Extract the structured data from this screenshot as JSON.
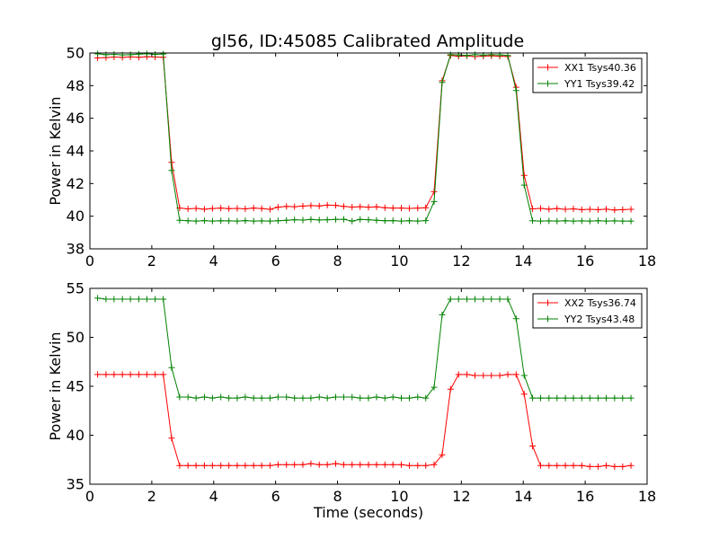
{
  "chart_data": [
    {
      "type": "line",
      "title": "gl56, ID:45085 Calibrated Amplitude",
      "xlabel": "",
      "ylabel": "Power in Kelvin",
      "xlim": [
        0,
        18
      ],
      "ylim": [
        38,
        50
      ],
      "xticks": [
        "0",
        "2",
        "4",
        "6",
        "8",
        "10",
        "12",
        "14",
        "16",
        "18"
      ],
      "yticks": [
        "38",
        "40",
        "42",
        "44",
        "46",
        "48",
        "50"
      ],
      "legend_position": "top-right",
      "grid": false,
      "x": [
        0.25,
        0.52,
        0.78,
        1.05,
        1.31,
        1.58,
        1.84,
        2.11,
        2.37,
        2.64,
        2.9,
        3.17,
        3.43,
        3.7,
        3.96,
        4.23,
        4.49,
        4.76,
        5.02,
        5.29,
        5.55,
        5.82,
        6.08,
        6.35,
        6.61,
        6.88,
        7.14,
        7.41,
        7.67,
        7.94,
        8.2,
        8.47,
        8.73,
        9.0,
        9.26,
        9.53,
        9.79,
        10.06,
        10.32,
        10.59,
        10.85,
        11.12,
        11.38,
        11.65,
        11.91,
        12.18,
        12.44,
        12.71,
        12.97,
        13.24,
        13.5,
        13.77,
        14.03,
        14.3,
        14.56,
        14.83,
        15.09,
        15.36,
        15.62,
        15.89,
        16.15,
        16.42,
        16.68,
        16.95,
        17.21,
        17.48
      ],
      "series": [
        {
          "name": "XX1 Tsys40.36",
          "color": "#ff0000",
          "values": [
            49.7,
            49.72,
            49.75,
            49.73,
            49.76,
            49.74,
            49.77,
            49.75,
            49.74,
            43.3,
            40.5,
            40.45,
            40.48,
            40.43,
            40.47,
            40.5,
            40.46,
            40.48,
            40.45,
            40.5,
            40.47,
            40.42,
            40.55,
            40.6,
            40.58,
            40.62,
            40.65,
            40.63,
            40.68,
            40.66,
            40.6,
            40.56,
            40.58,
            40.55,
            40.57,
            40.52,
            40.5,
            40.5,
            40.48,
            40.5,
            40.52,
            41.5,
            48.3,
            49.85,
            49.8,
            49.82,
            49.78,
            49.81,
            49.83,
            49.8,
            49.79,
            47.9,
            42.5,
            40.45,
            40.48,
            40.43,
            40.47,
            40.42,
            40.45,
            40.4,
            40.42,
            40.4,
            40.43,
            40.38,
            40.4,
            40.42
          ]
        },
        {
          "name": "YY1 Tsys39.42",
          "color": "#008000",
          "values": [
            49.95,
            49.9,
            49.92,
            49.88,
            49.9,
            49.93,
            49.95,
            49.92,
            49.94,
            42.8,
            39.75,
            39.72,
            39.7,
            39.73,
            39.7,
            39.72,
            39.71,
            39.7,
            39.73,
            39.7,
            39.71,
            39.7,
            39.72,
            39.75,
            39.78,
            39.76,
            39.8,
            39.77,
            39.78,
            39.8,
            39.81,
            39.7,
            39.8,
            39.78,
            39.75,
            39.72,
            39.73,
            39.7,
            39.72,
            39.7,
            39.73,
            40.9,
            48.2,
            49.9,
            49.88,
            49.85,
            49.9,
            49.87,
            49.9,
            49.88,
            49.85,
            47.7,
            41.9,
            39.72,
            39.7,
            39.71,
            39.7,
            39.72,
            39.7,
            39.71,
            39.7,
            39.72,
            39.7,
            39.71,
            39.7,
            39.7
          ]
        }
      ]
    },
    {
      "type": "line",
      "title": "",
      "xlabel": "Time (seconds)",
      "ylabel": "Power in Kelvin",
      "xlim": [
        0,
        18
      ],
      "ylim": [
        35,
        55
      ],
      "xticks": [
        "0",
        "2",
        "4",
        "6",
        "8",
        "10",
        "12",
        "14",
        "16",
        "18"
      ],
      "yticks": [
        "35",
        "40",
        "45",
        "50",
        "55"
      ],
      "legend_position": "top-right",
      "grid": false,
      "x": [
        0.25,
        0.52,
        0.78,
        1.05,
        1.31,
        1.58,
        1.84,
        2.11,
        2.37,
        2.64,
        2.9,
        3.17,
        3.43,
        3.7,
        3.96,
        4.23,
        4.49,
        4.76,
        5.02,
        5.29,
        5.55,
        5.82,
        6.08,
        6.35,
        6.61,
        6.88,
        7.14,
        7.41,
        7.67,
        7.94,
        8.2,
        8.47,
        8.73,
        9.0,
        9.26,
        9.53,
        9.79,
        10.06,
        10.32,
        10.59,
        10.85,
        11.12,
        11.38,
        11.65,
        11.91,
        12.18,
        12.44,
        12.71,
        12.97,
        13.24,
        13.5,
        13.77,
        14.03,
        14.3,
        14.56,
        14.83,
        15.09,
        15.36,
        15.62,
        15.89,
        16.15,
        16.42,
        16.68,
        16.95,
        17.21,
        17.48
      ],
      "series": [
        {
          "name": "XX2 Tsys36.74",
          "color": "#ff0000",
          "values": [
            46.2,
            46.2,
            46.2,
            46.2,
            46.2,
            46.2,
            46.2,
            46.2,
            46.2,
            39.7,
            36.9,
            36.9,
            36.9,
            36.9,
            36.9,
            36.9,
            36.9,
            36.9,
            36.9,
            36.9,
            36.9,
            36.9,
            37.0,
            37.0,
            37.0,
            37.0,
            37.1,
            37.0,
            37.0,
            37.1,
            37.0,
            37.0,
            37.0,
            37.0,
            37.0,
            37.0,
            37.0,
            37.0,
            36.9,
            36.9,
            36.9,
            37.0,
            38.0,
            44.7,
            46.2,
            46.2,
            46.1,
            46.1,
            46.1,
            46.1,
            46.2,
            46.2,
            44.2,
            38.9,
            36.9,
            36.9,
            36.9,
            36.9,
            36.9,
            36.9,
            36.8,
            36.8,
            36.9,
            36.8,
            36.8,
            36.9
          ]
        },
        {
          "name": "YY2 Tsys43.48",
          "color": "#008000",
          "values": [
            54.0,
            53.9,
            53.9,
            53.9,
            53.9,
            53.9,
            53.9,
            53.9,
            53.9,
            46.9,
            43.9,
            43.9,
            43.8,
            43.9,
            43.8,
            43.9,
            43.8,
            43.8,
            43.9,
            43.8,
            43.8,
            43.8,
            43.9,
            43.9,
            43.8,
            43.8,
            43.8,
            43.9,
            43.8,
            43.9,
            43.9,
            43.9,
            43.8,
            43.8,
            43.9,
            43.8,
            43.9,
            43.8,
            43.8,
            43.9,
            43.8,
            44.9,
            52.3,
            53.9,
            53.9,
            53.9,
            53.9,
            53.9,
            53.9,
            53.9,
            53.9,
            51.9,
            46.1,
            43.8,
            43.8,
            43.8,
            43.8,
            43.8,
            43.8,
            43.8,
            43.8,
            43.8,
            43.8,
            43.8,
            43.8,
            43.8
          ]
        }
      ]
    }
  ]
}
